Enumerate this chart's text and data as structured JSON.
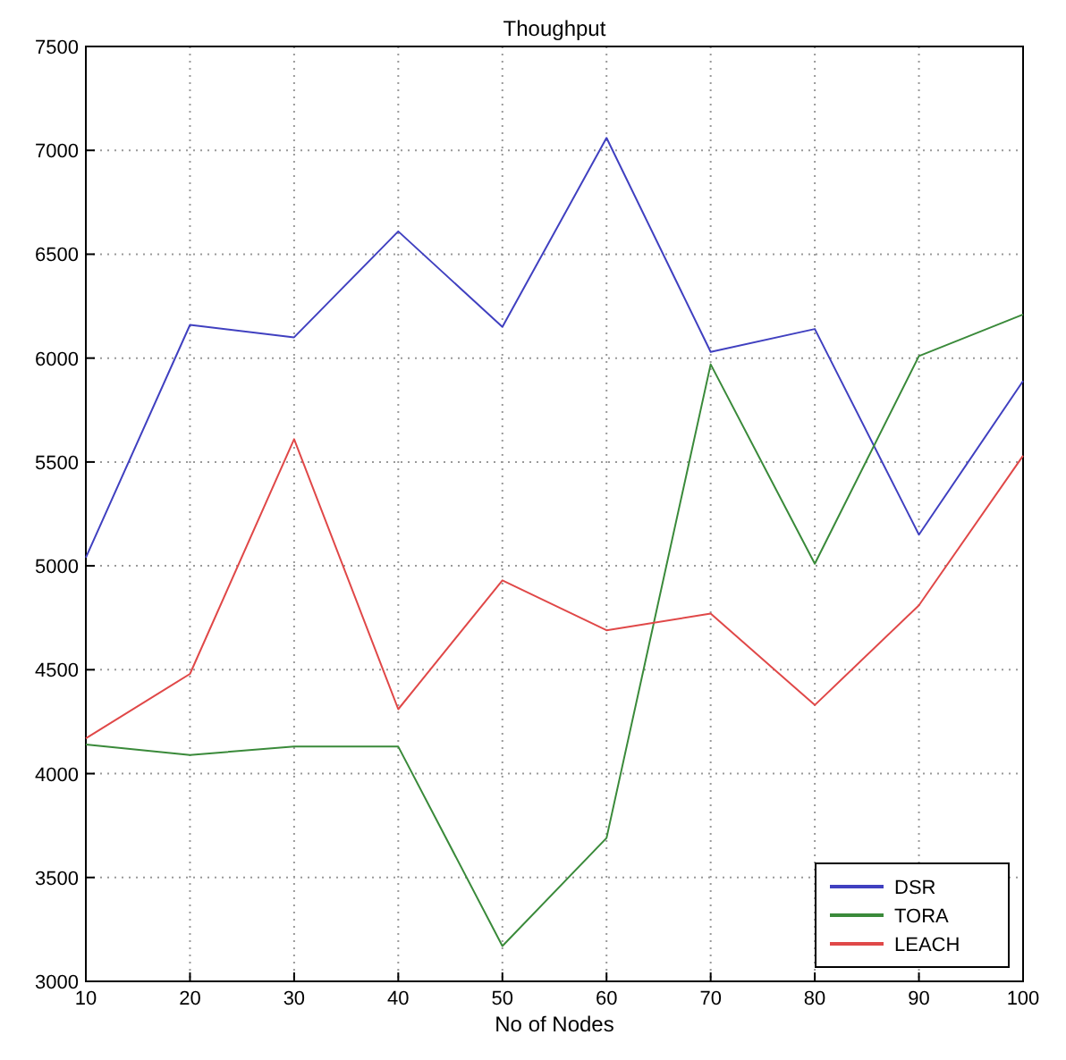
{
  "chart_data": {
    "type": "line",
    "title": "Thoughput",
    "xlabel": "No of Nodes",
    "x": [
      10,
      20,
      30,
      40,
      50,
      60,
      70,
      80,
      90,
      100
    ],
    "series": [
      {
        "name": "DSR",
        "color": "#4040c0",
        "values": [
          5040,
          6160,
          6100,
          6610,
          6150,
          7060,
          6030,
          6140,
          5150,
          5890
        ]
      },
      {
        "name": "TORA",
        "color": "#3a8a3a",
        "values": [
          4140,
          4090,
          4130,
          4130,
          3170,
          3690,
          5970,
          5010,
          6010,
          6210
        ]
      },
      {
        "name": "LEACH",
        "color": "#e04848",
        "values": [
          4170,
          4480,
          5610,
          4310,
          4930,
          4690,
          4770,
          4330,
          4810,
          5530
        ]
      }
    ],
    "xlim": [
      10,
      100
    ],
    "xticks": [
      10,
      20,
      30,
      40,
      50,
      60,
      70,
      80,
      90,
      100
    ],
    "ylim": [
      3000,
      7500
    ],
    "yticks": [
      3000,
      3500,
      4000,
      4500,
      5000,
      5500,
      6000,
      6500,
      7000,
      7500
    ],
    "grid": true,
    "legend": "bottom right",
    "marker": "none",
    "line_style": "solid"
  }
}
